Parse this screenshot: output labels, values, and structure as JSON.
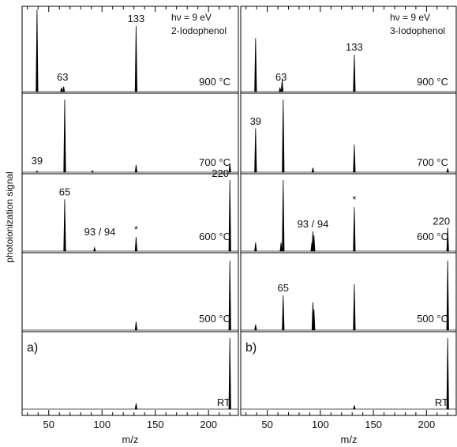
{
  "ylabel": "photoionization signal",
  "xlabel": "m/z",
  "photon_energy": "hν = 9 eV",
  "chart_data": [
    {
      "type": "line",
      "panel_label": "a)",
      "compound": "2-Iodophenol",
      "xlim": [
        25,
        228
      ],
      "x_ticks": [
        50,
        100,
        150,
        200
      ],
      "x_ticklabels": [
        "50",
        "100",
        "150",
        "200"
      ],
      "series": [
        {
          "name": "RT",
          "peaks": [
            [
              132,
              0.08
            ],
            [
              220,
              1.0
            ]
          ],
          "labels": []
        },
        {
          "name": "500 °C",
          "peaks": [
            [
              132,
              0.12
            ],
            [
              220,
              1.0
            ]
          ],
          "labels": []
        },
        {
          "name": "600 °C",
          "peaks": [
            [
              65,
              0.73
            ],
            [
              93,
              0.05
            ],
            [
              132,
              0.2
            ],
            [
              220,
              1.0
            ]
          ],
          "labels": [
            {
              "text": "65",
              "x": 65
            },
            {
              "text": "93 / 94",
              "x": 93
            },
            {
              "text": "*",
              "x": 132
            },
            {
              "text": "220",
              "x": 220
            }
          ]
        },
        {
          "name": "700 °C",
          "peaks": [
            [
              39,
              0.015
            ],
            [
              65,
              1.0
            ],
            [
              91,
              0.02
            ],
            [
              132,
              0.1
            ],
            [
              220,
              0.12
            ]
          ],
          "labels": [
            {
              "text": "39",
              "x": 39
            }
          ]
        },
        {
          "name": "900 °C",
          "peaks": [
            [
              39,
              1.0
            ],
            [
              62,
              0.05
            ],
            [
              64,
              0.06
            ],
            [
              132,
              0.8
            ]
          ],
          "labels": [
            {
              "text": "63",
              "x": 63
            },
            {
              "text": "133",
              "x": 132
            }
          ]
        }
      ]
    },
    {
      "type": "line",
      "panel_label": "b)",
      "compound": "3-Iodophenol",
      "xlim": [
        25,
        228
      ],
      "x_ticks": [
        50,
        100,
        150,
        200
      ],
      "x_ticklabels": [
        "50",
        "100",
        "150",
        "200"
      ],
      "series": [
        {
          "name": "RT",
          "peaks": [
            [
              132,
              0.05
            ],
            [
              220,
              1.0
            ]
          ],
          "labels": []
        },
        {
          "name": "500 °C",
          "peaks": [
            [
              39,
              0.08
            ],
            [
              65,
              0.5
            ],
            [
              93,
              0.4
            ],
            [
              94,
              0.3
            ],
            [
              132,
              0.66
            ],
            [
              220,
              1.0
            ]
          ],
          "labels": [
            {
              "text": "65",
              "x": 65
            }
          ]
        },
        {
          "name": "600 °C",
          "peaks": [
            [
              39,
              0.12
            ],
            [
              63,
              0.12
            ],
            [
              65,
              1.0
            ],
            [
              92,
              0.12
            ],
            [
              93,
              0.28
            ],
            [
              94,
              0.22
            ],
            [
              132,
              0.62
            ],
            [
              220,
              0.33
            ]
          ],
          "labels": [
            {
              "text": "93 / 94",
              "x": 93
            },
            {
              "text": "*",
              "x": 132
            },
            {
              "text": "220",
              "x": 220
            }
          ]
        },
        {
          "name": "700 °C",
          "peaks": [
            [
              39,
              0.6
            ],
            [
              65,
              1.0
            ],
            [
              93,
              0.06
            ],
            [
              132,
              0.38
            ],
            [
              220,
              0.05
            ]
          ],
          "labels": [
            {
              "text": "39",
              "x": 39
            }
          ]
        },
        {
          "name": "900 °C",
          "peaks": [
            [
              39,
              0.65
            ],
            [
              62,
              0.05
            ],
            [
              64,
              0.14
            ],
            [
              132,
              0.45
            ]
          ],
          "labels": [
            {
              "text": "63",
              "x": 63
            },
            {
              "text": "133",
              "x": 132
            }
          ]
        }
      ]
    }
  ]
}
